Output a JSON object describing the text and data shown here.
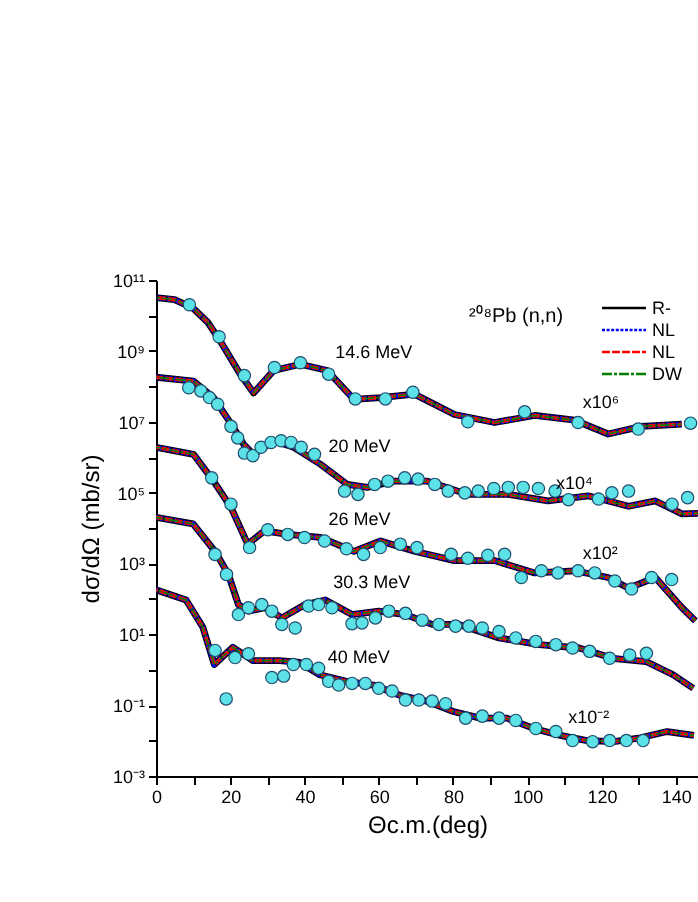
{
  "chart_data": {
    "type": "line",
    "title": "²⁰⁸Pb (n,n)",
    "xlabel": "Θc.m.(deg)",
    "ylabel": "dσ/dΩ (mb/sr)",
    "xlim": [
      0,
      146
    ],
    "ylim": [
      0.001,
      100000000000.0
    ],
    "log": true,
    "grid": false,
    "legend": "top right",
    "xticks": [
      0,
      {
        "value": 10,
        "label": null
      },
      20,
      {
        "value": 30,
        "label": null
      },
      40,
      {
        "value": 50,
        "label": null
      },
      60,
      {
        "value": 70,
        "label": null
      },
      80,
      {
        "value": 90,
        "label": null
      },
      100,
      {
        "value": 110,
        "label": null
      },
      120,
      {
        "value": 130,
        "label": null
      },
      140
    ],
    "yticks": [
      {
        "value": 0.001,
        "label": "10⁻³"
      },
      {
        "value": 0.01,
        "label": null
      },
      {
        "value": 0.1,
        "label": "10⁻¹"
      },
      {
        "value": 1,
        "label": null
      },
      {
        "value": 10,
        "label": "10¹"
      },
      {
        "value": 100,
        "label": null
      },
      {
        "value": 1000,
        "label": "10³"
      },
      {
        "value": 10000,
        "label": null
      },
      {
        "value": 100000,
        "label": "10⁵"
      },
      {
        "value": 1000000,
        "label": null
      },
      {
        "value": 10000000,
        "label": "10⁷"
      },
      {
        "value": 100000000,
        "label": null
      },
      {
        "value": 1000000000,
        "label": "10⁹"
      },
      {
        "value": 10000000000,
        "label": null
      },
      {
        "value": 100000000000,
        "label": "10¹¹"
      }
    ],
    "annotations": [
      {
        "text": "14.6 MeV",
        "x": 46.1,
        "y": 280000000.0
      },
      {
        "text": "20 MeV",
        "x": 44.3,
        "y": 630000.0
      },
      {
        "text": "26 MeV",
        "x": 44.3,
        "y": 5400
      },
      {
        "text": "30.3 MeV",
        "x": 45.6,
        "y": 93
      },
      {
        "text": "40 MeV",
        "x": 44.1,
        "y": 0.72
      },
      {
        "text": "x10⁶",
        "x": 112.8,
        "y": 11000000.0
      },
      {
        "text": "x10⁴",
        "x": 105.6,
        "y": 58000.0
      },
      {
        "text": "x10²",
        "x": 112.8,
        "y": 620
      },
      {
        "text": "x10⁻²",
        "x": 108.9,
        "y": 0.014
      }
    ],
    "series": [
      {
        "name": "R-",
        "line_style": "solid",
        "color": "#000000",
        "x": [
          0,
          5,
          10,
          14,
          17.3,
          22.7,
          26.3,
          31.7,
          38.9,
          46.1,
          53.3,
          60.5,
          69.6,
          80.4,
          91.2,
          102,
          112.8,
          121.8,
          130.8,
          141.6
        ],
        "values": [
          32000000000.0,
          28000000000.0,
          16000000000.0,
          6300000000.0,
          1900000000.0,
          220000000.0,
          65000000.0,
          280000000.0,
          420000000.0,
          280000000.0,
          43000000.0,
          48000000.0,
          60000000.0,
          16000000.0,
          9500000.0,
          15000000.0,
          11000000.0,
          4500000.0,
          7400000.0,
          8500000.0
        ]
      },
      {
        "name": "NL",
        "line_style": "dotted",
        "color": "#0000ff",
        "x": [
          0,
          5,
          10,
          14,
          17.3,
          22.7,
          26.3,
          31.7,
          38.9,
          46.1,
          53.3,
          60.5,
          69.6,
          80.4,
          91.2,
          102,
          112.8,
          121.8,
          130.8,
          141.6
        ],
        "values": [
          32000000000.0,
          28000000000.0,
          16000000000.0,
          6300000000.0,
          1900000000.0,
          220000000.0,
          65000000.0,
          280000000.0,
          420000000.0,
          280000000.0,
          43000000.0,
          48000000.0,
          60000000.0,
          16000000.0,
          9500000.0,
          15000000.0,
          11000000.0,
          4500000.0,
          7400000.0,
          8500000.0
        ]
      },
      {
        "name": "NL",
        "line_style": "dashed",
        "color": "#ff0000",
        "x": [
          0,
          5,
          10,
          14,
          17.3,
          22.7,
          26.3,
          31.7,
          38.9,
          46.1,
          53.3,
          60.5,
          69.6,
          80.4,
          91.2,
          102,
          112.8,
          121.8,
          130.8,
          141.6
        ],
        "values": [
          32000000000.0,
          28000000000.0,
          16000000000.0,
          6300000000.0,
          1900000000.0,
          220000000.0,
          65000000.0,
          280000000.0,
          420000000.0,
          280000000.0,
          43000000.0,
          48000000.0,
          60000000.0,
          16000000.0,
          9500000.0,
          15000000.0,
          11000000.0,
          4500000.0,
          7400000.0,
          8500000.0
        ]
      },
      {
        "name": "DW",
        "line_style": "dashdot",
        "color": "#008000",
        "x": [
          0,
          5,
          10,
          14,
          17.3,
          22.7,
          26.3,
          31.7,
          38.9,
          46.1,
          53.3,
          60.5,
          69.6,
          80.4,
          91.2,
          102,
          112.8,
          121.8,
          130.8,
          141.6
        ],
        "values": [
          32000000000.0,
          28000000000.0,
          16000000000.0,
          6300000000.0,
          1900000000.0,
          220000000.0,
          65000000.0,
          280000000.0,
          420000000.0,
          280000000.0,
          43000000.0,
          48000000.0,
          60000000.0,
          16000000.0,
          9500000.0,
          15000000.0,
          11000000.0,
          4500000.0,
          7400000.0,
          8500000.0
        ]
      },
      {
        "line_style": "solid",
        "color": "#000000",
        "x": [
          0,
          10.1,
          15.5,
          20.9,
          23.6,
          26.3,
          31.7,
          37.1,
          44.3,
          51.5,
          56.9,
          64.1,
          73.1,
          84,
          94.8,
          105.6,
          116.4,
          127.3,
          134.5,
          141.7,
          146
        ],
        "values": [
          180000000.0,
          140000000.0,
          48000000.0,
          6800000.0,
          2300000.0,
          1200000.0,
          2900000.0,
          1900000.0,
          630000.0,
          170000.0,
          140000.0,
          210000.0,
          210000.0,
          89000.0,
          89000.0,
          58000.0,
          81000.0,
          41000.0,
          58000.0,
          25000.0,
          26000.0
        ]
      },
      {
        "line_style": "dotted",
        "color": "#0000ff",
        "x": [
          0,
          10.1,
          15.5,
          20.9,
          23.6,
          26.3,
          31.7,
          37.1,
          44.3,
          51.5,
          56.9,
          64.1,
          73.1,
          84,
          94.8,
          105.6,
          116.4,
          127.3,
          134.5,
          141.7,
          146
        ],
        "values": [
          180000000.0,
          140000000.0,
          48000000.0,
          6800000.0,
          2300000.0,
          1200000.0,
          2900000.0,
          1900000.0,
          630000.0,
          170000.0,
          140000.0,
          210000.0,
          210000.0,
          89000.0,
          89000.0,
          58000.0,
          81000.0,
          41000.0,
          58000.0,
          25000.0,
          26000.0
        ]
      },
      {
        "line_style": "dashed",
        "color": "#ff0000",
        "x": [
          0,
          10.1,
          15.5,
          20.9,
          23.6,
          26.3,
          31.7,
          37.1,
          44.3,
          51.5,
          56.9,
          64.1,
          73.1,
          84,
          94.8,
          105.6,
          116.4,
          127.3,
          134.5,
          141.7,
          146
        ],
        "values": [
          180000000.0,
          140000000.0,
          48000000.0,
          6800000.0,
          2300000.0,
          1200000.0,
          2900000.0,
          1900000.0,
          630000.0,
          170000.0,
          140000.0,
          210000.0,
          210000.0,
          89000.0,
          89000.0,
          58000.0,
          81000.0,
          41000.0,
          58000.0,
          25000.0,
          26000.0
        ]
      },
      {
        "line_style": "dashdot",
        "color": "#008000",
        "x": [
          0,
          10.1,
          15.5,
          20.9,
          23.6,
          26.3,
          31.7,
          37.1,
          44.3,
          51.5,
          56.9,
          64.1,
          73.1,
          84,
          94.8,
          105.6,
          116.4,
          127.3,
          134.5,
          141.7,
          146
        ],
        "values": [
          180000000.0,
          140000000.0,
          48000000.0,
          6800000.0,
          2300000.0,
          1200000.0,
          2900000.0,
          1900000.0,
          630000.0,
          170000.0,
          140000.0,
          210000.0,
          210000.0,
          89000.0,
          89000.0,
          58000.0,
          81000.0,
          41000.0,
          58000.0,
          25000.0,
          26000.0
        ]
      },
      {
        "line_style": "solid",
        "color": "#000000",
        "x": [
          0,
          10.1,
          15.5,
          20.2,
          24.7,
          29.2,
          35.5,
          44.3,
          53.3,
          60.5,
          69.6,
          80.4,
          91.2,
          102,
          112.8,
          121.8,
          127.3,
          134.5,
          141.7,
          145.3
        ],
        "values": [
          1900000.0,
          1200000.0,
          210000.0,
          38000.0,
          3500,
          8300,
          6600,
          5400,
          2200,
          4300,
          2200,
          1200,
          1200,
          540,
          620,
          400,
          200,
          400,
          56,
          24
        ]
      },
      {
        "line_style": "dotted",
        "color": "#0000ff",
        "x": [
          0,
          10.1,
          15.5,
          20.2,
          24.7,
          29.2,
          35.5,
          44.3,
          53.3,
          60.5,
          69.6,
          80.4,
          91.2,
          102,
          112.8,
          121.8,
          127.3,
          134.5,
          141.7,
          145.3
        ],
        "values": [
          1900000.0,
          1200000.0,
          210000.0,
          38000.0,
          3500,
          8300,
          6600,
          5400,
          2200,
          4300,
          2200,
          1200,
          1200,
          540,
          620,
          400,
          200,
          400,
          56,
          24
        ]
      },
      {
        "line_style": "dashed",
        "color": "#ff0000",
        "x": [
          0,
          10.1,
          15.5,
          20.2,
          24.7,
          29.2,
          35.5,
          44.3,
          53.3,
          60.5,
          69.6,
          80.4,
          91.2,
          102,
          112.8,
          121.8,
          127.3,
          134.5,
          141.7,
          145.3
        ],
        "values": [
          1900000.0,
          1200000.0,
          210000.0,
          38000.0,
          3500,
          8300,
          6600,
          5400,
          2200,
          4300,
          2200,
          1200,
          1200,
          540,
          620,
          400,
          200,
          400,
          56,
          24
        ]
      },
      {
        "line_style": "dashdot",
        "color": "#008000",
        "x": [
          0,
          10.1,
          15.5,
          20.2,
          24.7,
          29.2,
          35.5,
          44.3,
          53.3,
          60.5,
          69.6,
          80.4,
          91.2,
          102,
          112.8,
          121.8,
          127.3,
          134.5,
          141.7,
          145.3
        ],
        "values": [
          1900000.0,
          1200000.0,
          210000.0,
          38000.0,
          3500,
          8300,
          6600,
          5400,
          2200,
          4300,
          2200,
          1200,
          1200,
          540,
          620,
          400,
          200,
          400,
          56,
          24
        ]
      },
      {
        "line_style": "solid",
        "color": "#000000",
        "x": [
          0,
          10,
          15.9,
          19.5,
          22.2,
          24.9,
          29.4,
          33.9,
          40.2,
          45.6,
          52.8,
          60,
          67.2,
          74.4,
          81.6,
          92.4,
          103.2,
          114,
          123,
          132,
          139.3,
          144.7
        ],
        "values": [
          20000.0,
          13000.0,
          2200,
          490,
          69,
          45,
          56,
          29,
          69,
          93,
          36,
          45,
          36,
          19,
          19,
          7.9,
          5.1,
          4.1,
          2.1,
          1.7,
          0.72,
          0.3
        ]
      },
      {
        "line_style": "dotted",
        "color": "#0000ff",
        "x": [
          0,
          10,
          15.9,
          19.5,
          22.2,
          24.9,
          29.4,
          33.9,
          40.2,
          45.6,
          52.8,
          60,
          67.2,
          74.4,
          81.6,
          92.4,
          103.2,
          114,
          123,
          132,
          139.3,
          144.7
        ],
        "values": [
          20000.0,
          13000.0,
          2200,
          490,
          69,
          45,
          56,
          29,
          69,
          93,
          36,
          45,
          36,
          19,
          19,
          7.9,
          5.1,
          4.1,
          2.1,
          1.7,
          0.72,
          0.3
        ]
      },
      {
        "line_style": "dashed",
        "color": "#ff0000",
        "x": [
          0,
          10,
          15.9,
          19.5,
          22.2,
          24.9,
          29.4,
          33.9,
          40.2,
          45.6,
          52.8,
          60,
          67.2,
          74.4,
          81.6,
          92.4,
          103.2,
          114,
          123,
          132,
          139.3,
          144.7
        ],
        "values": [
          20000.0,
          13000.0,
          2200,
          490,
          69,
          45,
          56,
          29,
          69,
          93,
          36,
          45,
          36,
          19,
          19,
          7.9,
          5.1,
          4.1,
          2.1,
          1.7,
          0.72,
          0.3
        ]
      },
      {
        "line_style": "dashdot",
        "color": "#008000",
        "x": [
          0,
          10,
          15.9,
          19.5,
          22.2,
          24.9,
          29.4,
          33.9,
          40.2,
          45.6,
          52.8,
          60,
          67.2,
          74.4,
          81.6,
          92.4,
          103.2,
          114,
          123,
          132,
          139.3,
          144.7
        ],
        "values": [
          20000.0,
          13000.0,
          2200,
          490,
          69,
          45,
          56,
          29,
          69,
          93,
          36,
          45,
          36,
          19,
          19,
          7.9,
          5.1,
          4.1,
          2.1,
          1.7,
          0.72,
          0.3
        ]
      },
      {
        "line_style": "solid",
        "color": "#000000",
        "x": [
          0,
          8.1,
          12.6,
          15.7,
          20.7,
          26.1,
          33.3,
          38.7,
          44.1,
          51.3,
          58.5,
          65.7,
          72.9,
          80.1,
          87.3,
          94.5,
          101.7,
          108.9,
          116.1,
          123.3,
          130.5,
          137.7,
          144.9
        ],
        "values": [
          180,
          93,
          16,
          1.4,
          4.3,
          1.8,
          1.8,
          1.6,
          0.72,
          0.47,
          0.37,
          0.19,
          0.13,
          0.066,
          0.043,
          0.043,
          0.022,
          0.014,
          0.01,
          0.0093,
          0.012,
          0.018,
          0.014
        ]
      },
      {
        "line_style": "dotted",
        "color": "#0000ff",
        "x": [
          0,
          8.1,
          12.6,
          15.7,
          20.7,
          26.1,
          33.3,
          38.7,
          44.1,
          51.3,
          58.5,
          65.7,
          72.9,
          80.1,
          87.3,
          94.5,
          101.7,
          108.9,
          116.1,
          123.3,
          130.5,
          137.7,
          144.9
        ],
        "values": [
          180,
          93,
          16,
          1.4,
          4.3,
          1.8,
          1.8,
          1.6,
          0.72,
          0.47,
          0.37,
          0.19,
          0.13,
          0.066,
          0.043,
          0.043,
          0.022,
          0.014,
          0.01,
          0.0093,
          0.012,
          0.018,
          0.014
        ]
      },
      {
        "line_style": "dashed",
        "color": "#ff0000",
        "x": [
          0,
          8.1,
          12.6,
          15.7,
          20.7,
          26.1,
          33.3,
          38.7,
          44.1,
          51.3,
          58.5,
          65.7,
          72.9,
          80.1,
          87.3,
          94.5,
          101.7,
          108.9,
          116.1,
          123.3,
          130.5,
          137.7,
          144.9
        ],
        "values": [
          180,
          93,
          16,
          1.4,
          4.3,
          1.8,
          1.8,
          1.6,
          0.72,
          0.47,
          0.37,
          0.19,
          0.13,
          0.066,
          0.043,
          0.043,
          0.022,
          0.014,
          0.01,
          0.0093,
          0.012,
          0.018,
          0.014
        ]
      },
      {
        "line_style": "dashdot",
        "color": "#008000",
        "x": [
          0,
          8.1,
          12.6,
          15.7,
          20.7,
          26.1,
          33.3,
          38.7,
          44.1,
          51.3,
          58.5,
          65.7,
          72.9,
          80.1,
          87.3,
          94.5,
          101.7,
          108.9,
          116.1,
          123.3,
          130.5,
          137.7,
          144.9
        ],
        "values": [
          180,
          93,
          16,
          1.4,
          4.3,
          1.8,
          1.8,
          1.6,
          0.72,
          0.47,
          0.37,
          0.19,
          0.13,
          0.066,
          0.043,
          0.043,
          0.022,
          0.014,
          0.01,
          0.0093,
          0.012,
          0.018,
          0.014
        ]
      },
      {
        "type": "scatter",
        "marker": "circle",
        "color": "#5ce1e6",
        "x": [
          9,
          17,
          23.8,
          31.9,
          38.9,
          46.5,
          53.7,
          61.8,
          69.2,
          84,
          99.3,
          113.7,
          129.9,
          144
        ],
        "values": [
          20000000000.0,
          2500000000.0,
          200000000.0,
          340000000.0,
          460000000.0,
          220000000.0,
          44000000.0,
          44000000.0,
          68000000.0,
          10000000.0,
          19000000.0,
          9500000.0,
          6200000.0,
          9100000.0
        ]
      },
      {
        "type": "scatter",
        "marker": "circle",
        "color": "#5ce1e6",
        "x": [
          8.8,
          12.1,
          14.4,
          16.6,
          20.2,
          22,
          23.8,
          26.1,
          28.3,
          31,
          33.7,
          36.4,
          39.1,
          42.7,
          50.8,
          54.4,
          58.9,
          62.5,
          67,
          70.6,
          75.1,
          78.7,
          83.2,
          86.8,
          91,
          94.9,
          98.9,
          103,
          107.5,
          111.1,
          119.2,
          122.8,
          127.3,
          139,
          143.2
        ],
        "values": [
          91000000.0,
          74000000.0,
          48000000.0,
          31000000.0,
          7400000.0,
          3500000.0,
          1300000.0,
          1100000.0,
          1900000.0,
          2600000.0,
          2900000.0,
          2600000.0,
          1900000.0,
          1200000.0,
          110000.0,
          89000.0,
          170000.0,
          210000.0,
          260000.0,
          240000.0,
          170000.0,
          110000.0,
          98000.0,
          110000.0,
          130000.0,
          140000.0,
          140000.0,
          130000.0,
          110000.0,
          63000.0,
          66000.0,
          98000.0,
          110000.0,
          47000.0,
          72000.0
        ]
      },
      {
        "type": "scatter",
        "marker": "circle",
        "color": "#5ce1e6",
        "x": [
          15,
          20.2,
          25.2,
          30.1,
          35.5,
          40,
          45.4,
          51.3,
          55.9,
          60.4,
          65.8,
          70.3,
          79.5,
          84,
          89.4,
          93.9,
          98.4,
          103.8,
          108.3,
          113.7,
          118.2,
          123.6,
          128.1,
          133.5,
          138.9
        ],
        "values": [
          260000.0,
          47000.0,
          2800,
          8900,
          6600,
          5400,
          4300,
          2600,
          1800,
          2800,
          3500,
          2800,
          1800,
          1400,
          1700,
          1800,
          400,
          620,
          540,
          620,
          540,
          320,
          190,
          400,
          350
        ]
      },
      {
        "type": "scatter",
        "marker": "circle",
        "color": "#5ce1e6",
        "x": [
          15.9,
          19,
          22.2,
          24.9,
          28.5,
          31.2,
          33.9,
          37.5,
          41.1,
          43.8,
          47.4,
          52.8,
          55.5,
          59.1,
          62.7,
          67.2,
          71.7,
          76.2,
          80.7,
          84.3,
          87.9,
          92.4,
          96.9,
          102.3,
          107.7,
          112.2,
          116.8,
          122.2,
          127.6,
          132.1
        ],
        "values": [
          1800,
          490,
          36,
          56,
          69,
          45,
          19,
          15,
          63,
          69,
          56,
          20,
          21,
          29,
          45,
          39,
          25,
          19,
          17,
          17,
          15,
          12,
          7.9,
          6.3,
          5.1,
          4.1,
          3.3,
          2.1,
          2.6,
          2.9
        ]
      },
      {
        "type": "scatter",
        "marker": "circle",
        "color": "#5ce1e6",
        "x": [
          15.9,
          18.9,
          21.3,
          24.9,
          31.2,
          34.4,
          37,
          40.5,
          43.8,
          46.5,
          49.2,
          52.8,
          56.4,
          60,
          63.6,
          67.2,
          70.8,
          74.4,
          78,
          83.4,
          87.9,
          92.4,
          96.9,
          102.3,
          107.7,
          112.2,
          117.6,
          122.2,
          126.7,
          131.2
        ],
        "values": [
          3.5,
          0.15,
          2.2,
          2.8,
          0.6,
          0.66,
          1.4,
          1.4,
          1.1,
          0.47,
          0.37,
          0.41,
          0.41,
          0.3,
          0.25,
          0.14,
          0.14,
          0.13,
          0.11,
          0.043,
          0.049,
          0.043,
          0.037,
          0.022,
          0.018,
          0.01,
          0.0093,
          0.01,
          0.01,
          0.01
        ]
      }
    ]
  }
}
